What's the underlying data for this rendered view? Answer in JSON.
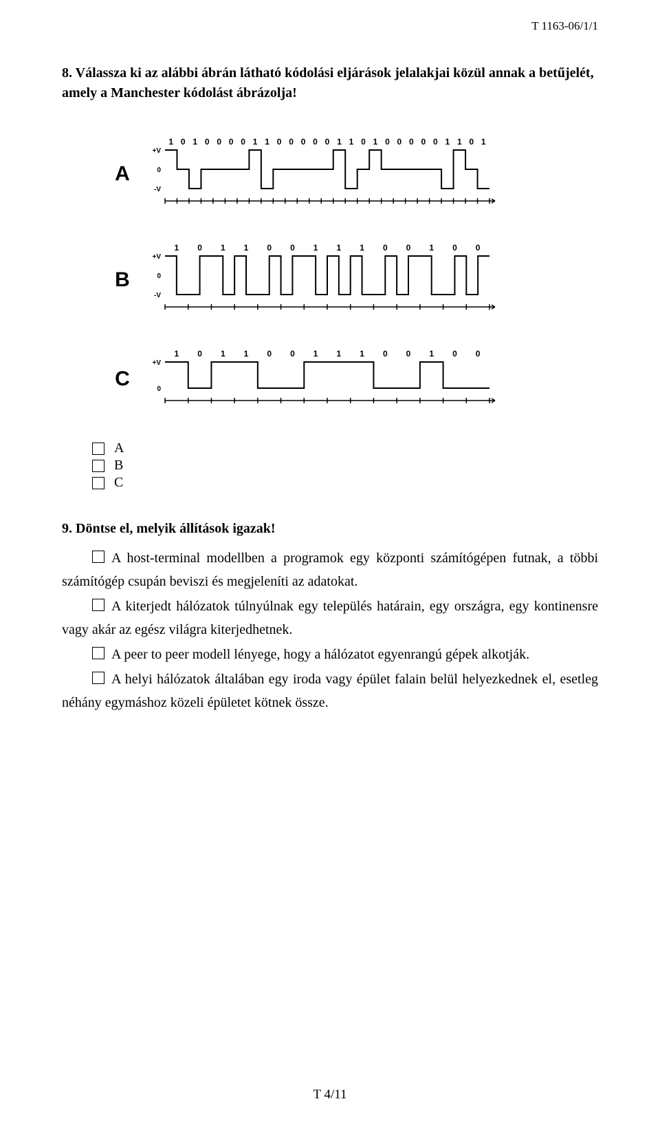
{
  "doc_id": "T 1163-06/1/1",
  "q8": {
    "num": "8.",
    "text": "Válassza ki az alábbi ábrán látható kódolási eljárások jelalakjai közül annak a betűjelét, amely a Manchester kódolást ábrázolja!"
  },
  "waveforms": {
    "A": {
      "label": "A",
      "bits": [
        1,
        0,
        1,
        0,
        0,
        0,
        0,
        1,
        1,
        0,
        0,
        0,
        0,
        0,
        1,
        1,
        0,
        1,
        0,
        0,
        0,
        0,
        0,
        1,
        1,
        0,
        1
      ],
      "levels": [
        "+V",
        "0",
        "-V"
      ],
      "has_neg": true
    },
    "B": {
      "label": "B",
      "bits": [
        1,
        0,
        1,
        1,
        0,
        0,
        1,
        1,
        1,
        0,
        0,
        1,
        0,
        0
      ],
      "levels": [
        "+V",
        "0",
        "-V"
      ],
      "has_neg": true
    },
    "C": {
      "label": "C",
      "bits": [
        1,
        0,
        1,
        1,
        0,
        0,
        1,
        1,
        1,
        0,
        0,
        1,
        0,
        0
      ],
      "levels": [
        "+V",
        "0"
      ],
      "has_neg": false
    }
  },
  "options": {
    "a": "A",
    "b": "B",
    "c": "C"
  },
  "q9": {
    "num": "9.",
    "text": "Döntse el, melyik állítások igazak!",
    "statements": {
      "s1": "A host-terminal modellben a programok egy központi számítógépen futnak, a többi számítógép csupán beviszi és megjeleníti az adatokat.",
      "s2": "A kiterjedt hálózatok túlnyúlnak egy település határain, egy országra, egy kontinensre vagy akár az egész világra kiterjedhetnek.",
      "s3": "A peer to peer modell lényege, hogy a hálózatot egyenrangú gépek alkotják.",
      "s4": "A helyi hálózatok általában egy iroda vagy épület falain belül helyezkednek el, esetleg néhány egymáshoz közeli épületet kötnek össze."
    }
  },
  "footer": "T 4/11",
  "style": {
    "font_main": "Times New Roman",
    "font_fig_label": "Arial",
    "text_color": "#000000",
    "bg": "#ffffff",
    "stroke": "#000000",
    "stroke_w": 2,
    "bit_font": 12,
    "level_font": 10
  }
}
